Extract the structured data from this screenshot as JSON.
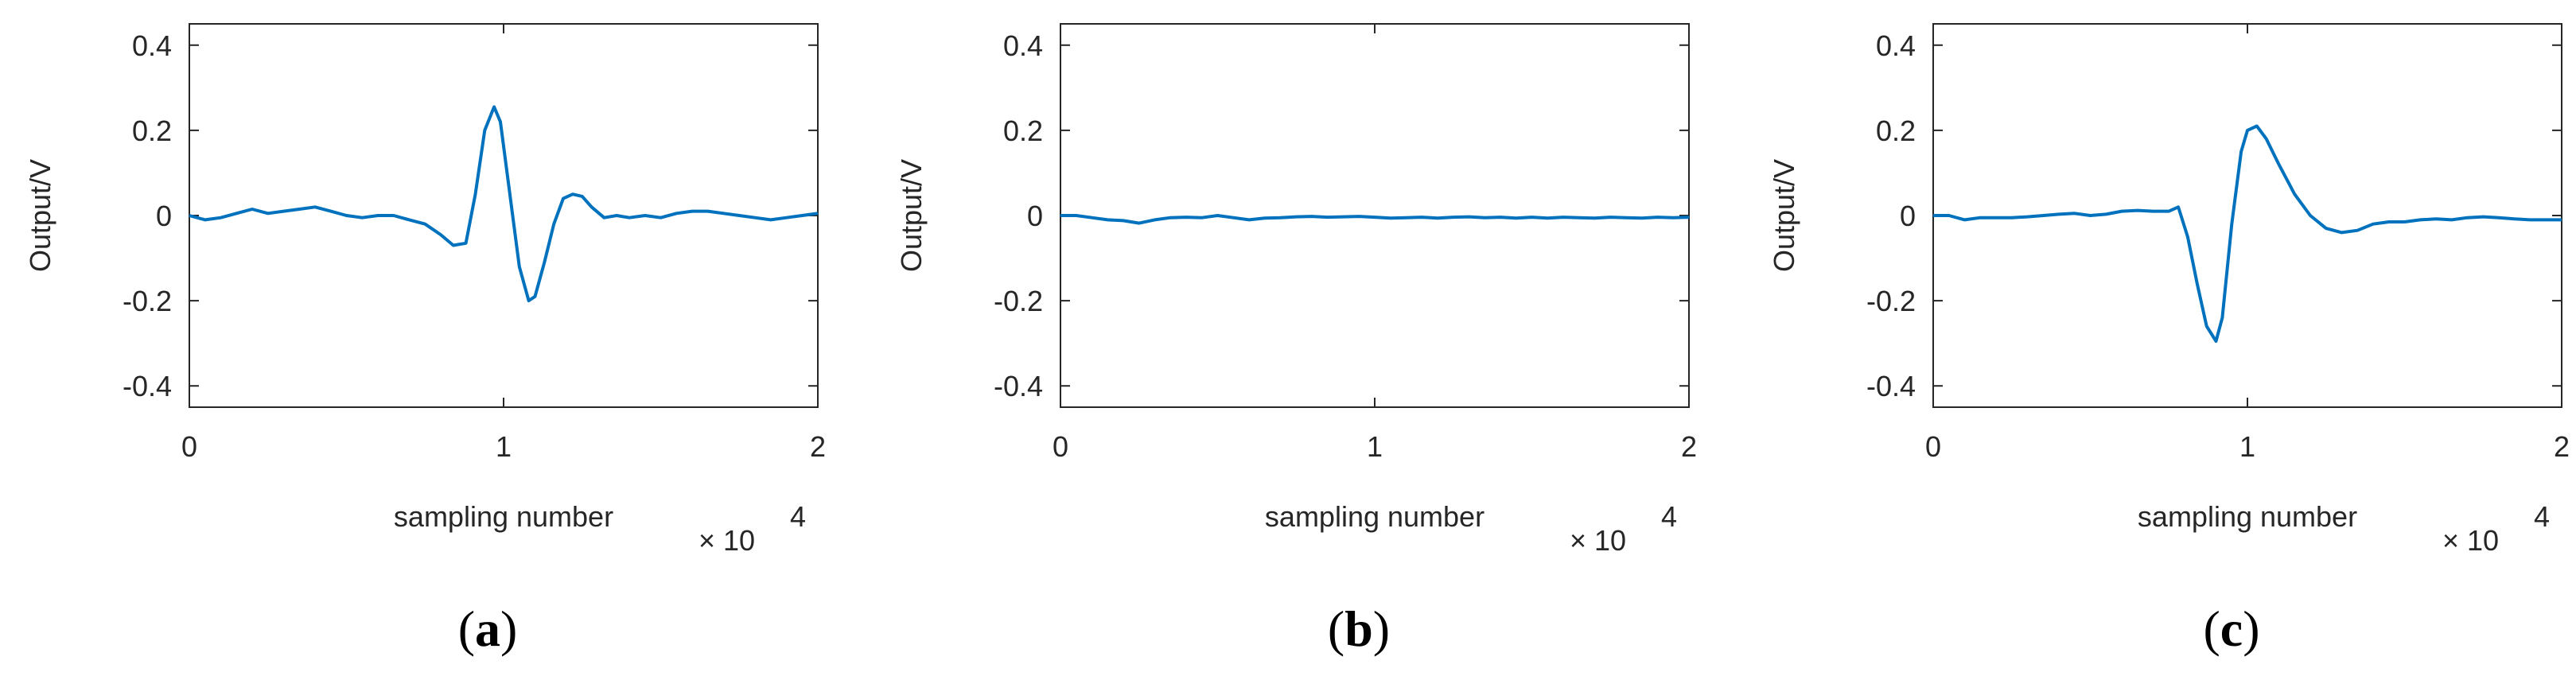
{
  "colors": {
    "line": "#0072BD",
    "axis": "#262626",
    "background": "#ffffff"
  },
  "chart_data": [
    {
      "type": "line",
      "panel_label": "a",
      "xlabel": "sampling number",
      "ylabel": "Output/V",
      "x_multiplier": "× 10",
      "x_exponent": "4",
      "xlim": [
        0,
        2
      ],
      "ylim": [
        -0.45,
        0.45
      ],
      "x_ticks": [
        0,
        1,
        2
      ],
      "x_tick_labels": [
        "0",
        "1",
        "2"
      ],
      "y_ticks": [
        -0.4,
        -0.2,
        0,
        0.2,
        0.4
      ],
      "y_tick_labels": [
        "-0.4",
        "-0.2",
        "0",
        "0.2",
        "0.4"
      ],
      "grid": false,
      "series": [
        {
          "x": [
            0,
            0.05,
            0.1,
            0.15,
            0.2,
            0.25,
            0.3,
            0.35,
            0.4,
            0.45,
            0.5,
            0.55,
            0.6,
            0.65,
            0.7,
            0.75,
            0.8,
            0.84,
            0.88,
            0.91,
            0.94,
            0.97,
            0.99,
            1.02,
            1.05,
            1.08,
            1.1,
            1.13,
            1.16,
            1.19,
            1.22,
            1.25,
            1.28,
            1.32,
            1.36,
            1.4,
            1.45,
            1.5,
            1.55,
            1.6,
            1.65,
            1.7,
            1.75,
            1.8,
            1.85,
            1.9,
            1.95,
            2.0
          ],
          "y": [
            0,
            -0.01,
            -0.005,
            0.005,
            0.015,
            0.005,
            0.01,
            0.015,
            0.02,
            0.01,
            0.0,
            -0.005,
            0.0,
            0.0,
            -0.01,
            -0.02,
            -0.045,
            -0.07,
            -0.065,
            0.05,
            0.2,
            0.255,
            0.22,
            0.05,
            -0.12,
            -0.2,
            -0.19,
            -0.11,
            -0.02,
            0.04,
            0.05,
            0.045,
            0.02,
            -0.005,
            0.0,
            -0.005,
            0.0,
            -0.005,
            0.005,
            0.01,
            0.01,
            0.005,
            0.0,
            -0.005,
            -0.01,
            -0.005,
            0.0,
            0.005
          ]
        }
      ]
    },
    {
      "type": "line",
      "panel_label": "b",
      "xlabel": "sampling number",
      "ylabel": "Output/V",
      "x_multiplier": "× 10",
      "x_exponent": "4",
      "xlim": [
        0,
        2
      ],
      "ylim": [
        -0.45,
        0.45
      ],
      "x_ticks": [
        0,
        1,
        2
      ],
      "x_tick_labels": [
        "0",
        "1",
        "2"
      ],
      "y_ticks": [
        -0.4,
        -0.2,
        0,
        0.2,
        0.4
      ],
      "y_tick_labels": [
        "-0.4",
        "-0.2",
        "0",
        "0.2",
        "0.4"
      ],
      "grid": false,
      "series": [
        {
          "x": [
            0,
            0.05,
            0.1,
            0.15,
            0.2,
            0.25,
            0.3,
            0.35,
            0.4,
            0.45,
            0.5,
            0.55,
            0.6,
            0.65,
            0.7,
            0.75,
            0.8,
            0.85,
            0.9,
            0.95,
            1.0,
            1.05,
            1.1,
            1.15,
            1.2,
            1.25,
            1.3,
            1.35,
            1.4,
            1.45,
            1.5,
            1.55,
            1.6,
            1.65,
            1.7,
            1.75,
            1.8,
            1.85,
            1.9,
            1.95,
            2.0
          ],
          "y": [
            0.0,
            0.0,
            -0.005,
            -0.01,
            -0.012,
            -0.018,
            -0.01,
            -0.005,
            -0.004,
            -0.005,
            0.0,
            -0.005,
            -0.01,
            -0.006,
            -0.005,
            -0.003,
            -0.002,
            -0.004,
            -0.003,
            -0.002,
            -0.004,
            -0.006,
            -0.005,
            -0.004,
            -0.006,
            -0.004,
            -0.003,
            -0.005,
            -0.004,
            -0.006,
            -0.004,
            -0.006,
            -0.004,
            -0.005,
            -0.006,
            -0.004,
            -0.005,
            -0.006,
            -0.004,
            -0.005,
            -0.004
          ]
        }
      ]
    },
    {
      "type": "line",
      "panel_label": "c",
      "xlabel": "sampling number",
      "ylabel": "Output/V",
      "x_multiplier": "× 10",
      "x_exponent": "4",
      "xlim": [
        0,
        2
      ],
      "ylim": [
        -0.45,
        0.45
      ],
      "x_ticks": [
        0,
        1,
        2
      ],
      "x_tick_labels": [
        "0",
        "1",
        "2"
      ],
      "y_ticks": [
        -0.4,
        -0.2,
        0,
        0.2,
        0.4
      ],
      "y_tick_labels": [
        "-0.4",
        "-0.2",
        "0",
        "0.2",
        "0.4"
      ],
      "grid": false,
      "series": [
        {
          "x": [
            0,
            0.05,
            0.1,
            0.15,
            0.2,
            0.25,
            0.3,
            0.35,
            0.4,
            0.45,
            0.5,
            0.55,
            0.6,
            0.65,
            0.7,
            0.75,
            0.78,
            0.81,
            0.84,
            0.87,
            0.9,
            0.92,
            0.95,
            0.98,
            1.0,
            1.03,
            1.06,
            1.1,
            1.15,
            1.2,
            1.25,
            1.3,
            1.35,
            1.4,
            1.45,
            1.5,
            1.55,
            1.6,
            1.65,
            1.7,
            1.75,
            1.8,
            1.85,
            1.9,
            1.95,
            2.0
          ],
          "y": [
            0.0,
            0.0,
            -0.01,
            -0.005,
            -0.005,
            -0.005,
            -0.003,
            0.0,
            0.003,
            0.005,
            0.0,
            0.003,
            0.01,
            0.012,
            0.01,
            0.01,
            0.02,
            -0.05,
            -0.16,
            -0.26,
            -0.295,
            -0.24,
            -0.02,
            0.15,
            0.2,
            0.21,
            0.18,
            0.12,
            0.05,
            0.0,
            -0.03,
            -0.04,
            -0.035,
            -0.02,
            -0.015,
            -0.015,
            -0.01,
            -0.008,
            -0.01,
            -0.005,
            -0.003,
            -0.005,
            -0.008,
            -0.01,
            -0.01,
            -0.01
          ]
        }
      ]
    }
  ]
}
